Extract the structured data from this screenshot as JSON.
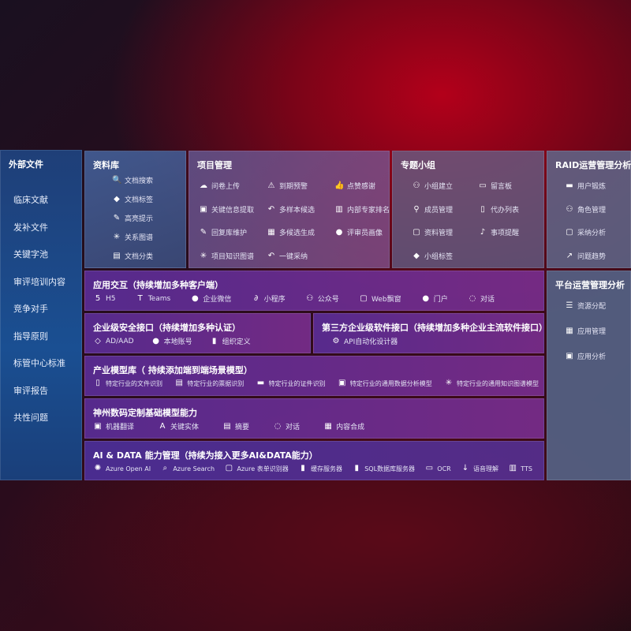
{
  "external": {
    "title": "外部文件",
    "items": [
      "临床文献",
      "发补文件",
      "关键字池",
      "审评培训内容",
      "竞争对手",
      "指导原则",
      "标管中心标准",
      "审评报告",
      "共性问题"
    ]
  },
  "library": {
    "title": "资料库",
    "items": [
      {
        "icon": "doc-search-icon",
        "label": "文档搜索"
      },
      {
        "icon": "tag-icon",
        "label": "文档标签"
      },
      {
        "icon": "pen-icon",
        "label": "高亮提示"
      },
      {
        "icon": "graph-icon",
        "label": "关系图谱"
      },
      {
        "icon": "doc-category-icon",
        "label": "文档分类"
      }
    ]
  },
  "project": {
    "title": "项目管理",
    "items": [
      {
        "icon": "cloud-upload-icon",
        "label": "问卷上传"
      },
      {
        "icon": "alarm-icon",
        "label": "到期预警"
      },
      {
        "icon": "thumbs-up-icon",
        "label": "点赞感谢"
      },
      {
        "icon": "extract-icon",
        "label": "关键信息提取"
      },
      {
        "icon": "reply-icon",
        "label": "多样本候选"
      },
      {
        "icon": "ranking-icon",
        "label": "内部专家排名"
      },
      {
        "icon": "edit-icon",
        "label": "回复库维护"
      },
      {
        "icon": "puzzle-icon",
        "label": "多候选生成"
      },
      {
        "icon": "user-icon",
        "label": "评审员画像"
      },
      {
        "icon": "graph-icon",
        "label": "项目知识图谱"
      },
      {
        "icon": "reply-icon",
        "label": "一键采纳"
      }
    ]
  },
  "group": {
    "title": "专题小组",
    "items": [
      {
        "icon": "group-icon",
        "label": "小组建立"
      },
      {
        "icon": "bbs-icon",
        "label": "留言板"
      },
      {
        "icon": "user-add-icon",
        "label": "成员管理"
      },
      {
        "icon": "clipboard-icon",
        "label": "代办列表"
      },
      {
        "icon": "folder-icon",
        "label": "资料管理"
      },
      {
        "icon": "bell-icon",
        "label": "事项提醒"
      },
      {
        "icon": "tag-icon",
        "label": "小组标签"
      }
    ]
  },
  "raid": {
    "title": "RAID运营管理分析",
    "items": [
      {
        "icon": "id-card-icon",
        "label": "用户锻炼"
      },
      {
        "icon": "users-icon",
        "label": "角色管理"
      },
      {
        "icon": "qa-icon",
        "label": "采纳分析"
      },
      {
        "icon": "trend-icon",
        "label": "问题趋势"
      }
    ]
  },
  "platform": {
    "title": "平台运营管理分析",
    "items": [
      {
        "icon": "checklist-icon",
        "label": "资源分配"
      },
      {
        "icon": "apps-icon",
        "label": "应用管理"
      },
      {
        "icon": "chart-icon",
        "label": "应用分析"
      }
    ]
  },
  "app": {
    "title": "应用交互（持续增加多种客户端）",
    "items": [
      {
        "icon": "html5-icon",
        "label": "H5"
      },
      {
        "icon": "teams-icon",
        "label": "Teams"
      },
      {
        "icon": "wecom-icon",
        "label": "企业微信"
      },
      {
        "icon": "miniprogram-icon",
        "label": "小程序"
      },
      {
        "icon": "official-account-icon",
        "label": "公众号"
      },
      {
        "icon": "window-icon",
        "label": "Web飘窗"
      },
      {
        "icon": "portal-icon",
        "label": "门户"
      },
      {
        "icon": "chat-icon",
        "label": "对话"
      }
    ]
  },
  "security": {
    "title": "企业级安全接口（持续增加多种认证）",
    "items": [
      {
        "icon": "aad-icon",
        "label": "AD/AAD"
      },
      {
        "icon": "account-icon",
        "label": "本地账号"
      },
      {
        "icon": "org-icon",
        "label": "组织定义"
      }
    ]
  },
  "thirdparty": {
    "title": "第三方企业级软件接口（持续增加多种企业主流软件接口）",
    "items": [
      {
        "icon": "gear-icon",
        "label": "API自动化设计器"
      }
    ]
  },
  "industry": {
    "title": "产业模型库（ 持续添加端到端场景模型）",
    "items": [
      {
        "icon": "file-icon",
        "label": "特定行业的文件识别"
      },
      {
        "icon": "receipt-icon",
        "label": "特定行业的票据识别"
      },
      {
        "icon": "id-card-icon",
        "label": "特定行业的证件识别"
      },
      {
        "icon": "analysis-icon",
        "label": "特定行业的通用数据分析模型"
      },
      {
        "icon": "graph-icon",
        "label": "特定行业的通用知识图谱模型"
      }
    ]
  },
  "base": {
    "title": "神州数码定制基础模型能力",
    "items": [
      {
        "icon": "translate-icon",
        "label": "机器翻译"
      },
      {
        "icon": "entity-icon",
        "label": "关键实体"
      },
      {
        "icon": "summary-icon",
        "label": "摘要"
      },
      {
        "icon": "chat-icon",
        "label": "对话"
      },
      {
        "icon": "compose-icon",
        "label": "内容合成"
      }
    ]
  },
  "ai": {
    "title": "AI & DATA 能力管理（持续为接入更多AI&DATA能力）",
    "items": [
      {
        "icon": "openai-icon",
        "label": "Azure Open AI"
      },
      {
        "icon": "search-icon",
        "label": "Azure Search"
      },
      {
        "icon": "form-icon",
        "label": "Azure 表单识别器"
      },
      {
        "icon": "cache-icon",
        "label": "缓存服务器"
      },
      {
        "icon": "database-icon",
        "label": "SQL数据库服务器"
      },
      {
        "icon": "ocr-icon",
        "label": "OCR"
      },
      {
        "icon": "speech-icon",
        "label": "语音理解"
      },
      {
        "icon": "tts-icon",
        "label": "TTS"
      }
    ]
  }
}
